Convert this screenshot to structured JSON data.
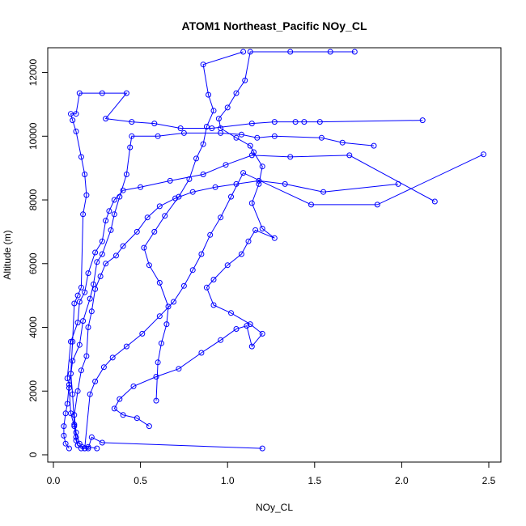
{
  "chart_data": {
    "type": "line",
    "title": "ATOM1 Northeast_Pacific NOy_CL",
    "xlabel": "NOy_CL",
    "ylabel": "Altitude (m)",
    "xlim": [
      0,
      2.5
    ],
    "ylim": [
      0,
      12700
    ],
    "xticks": [
      0.0,
      0.5,
      1.0,
      1.5,
      2.0,
      2.5
    ],
    "xtick_labels": [
      "0.0",
      "0.5",
      "1.0",
      "1.5",
      "2.0",
      "2.5"
    ],
    "yticks": [
      0,
      2000,
      4000,
      6000,
      8000,
      10000,
      12000
    ],
    "ytick_labels": [
      "0",
      "2000",
      "4000",
      "6000",
      "8000",
      "10000",
      "12000"
    ],
    "grid": false,
    "line_color": "#0000ff",
    "marker": "open-circle",
    "series": [
      {
        "values": [
          [
            1.2,
            200
          ],
          [
            0.28,
            380
          ],
          [
            0.22,
            550
          ],
          [
            0.2,
            200
          ],
          [
            0.16,
            200
          ],
          [
            0.14,
            300
          ],
          [
            0.13,
            450
          ],
          [
            0.12,
            950
          ],
          [
            0.11,
            1900
          ],
          [
            0.1,
            2550
          ],
          [
            0.11,
            3550
          ],
          [
            0.12,
            4750
          ],
          [
            0.14,
            5000
          ],
          [
            0.16,
            5250
          ],
          [
            0.17,
            7550
          ],
          [
            0.19,
            8150
          ],
          [
            0.18,
            8800
          ],
          [
            0.16,
            9350
          ],
          [
            0.13,
            10150
          ],
          [
            0.11,
            10500
          ],
          [
            0.1,
            10700
          ],
          [
            0.13,
            10700
          ],
          [
            0.15,
            11350
          ],
          [
            0.28,
            11350
          ],
          [
            0.42,
            11350
          ],
          [
            0.3,
            10550
          ],
          [
            0.45,
            10450
          ],
          [
            0.58,
            10400
          ],
          [
            0.73,
            10250
          ],
          [
            0.91,
            10250
          ],
          [
            1.14,
            10400
          ],
          [
            1.27,
            10450
          ],
          [
            1.39,
            10450
          ],
          [
            1.44,
            10450
          ],
          [
            1.53,
            10450
          ],
          [
            2.12,
            10500
          ]
        ]
      },
      {
        "values": [
          [
            0.18,
            200
          ],
          [
            0.14,
            300
          ],
          [
            0.13,
            550
          ],
          [
            0.12,
            900
          ],
          [
            0.1,
            1300
          ],
          [
            0.09,
            2100
          ],
          [
            0.11,
            2950
          ],
          [
            0.15,
            3450
          ],
          [
            0.17,
            4200
          ],
          [
            0.21,
            4900
          ],
          [
            0.23,
            5350
          ],
          [
            0.25,
            6050
          ],
          [
            0.28,
            6300
          ],
          [
            0.33,
            7050
          ],
          [
            0.35,
            7550
          ],
          [
            0.38,
            8100
          ],
          [
            0.42,
            8800
          ],
          [
            0.44,
            9650
          ],
          [
            0.45,
            10000
          ],
          [
            0.6,
            10000
          ],
          [
            0.75,
            10100
          ],
          [
            0.96,
            10100
          ],
          [
            1.08,
            10050
          ],
          [
            1.17,
            9950
          ],
          [
            1.27,
            10000
          ],
          [
            1.54,
            9950
          ],
          [
            1.66,
            9800
          ],
          [
            1.84,
            9700
          ]
        ]
      },
      {
        "values": [
          [
            0.25,
            200
          ],
          [
            0.2,
            250
          ],
          [
            0.15,
            350
          ],
          [
            0.13,
            700
          ],
          [
            0.12,
            1250
          ],
          [
            0.14,
            2000
          ],
          [
            0.16,
            2650
          ],
          [
            0.19,
            3100
          ],
          [
            0.2,
            4000
          ],
          [
            0.22,
            4500
          ],
          [
            0.24,
            5200
          ],
          [
            0.27,
            5600
          ],
          [
            0.3,
            6000
          ],
          [
            0.36,
            6250
          ],
          [
            0.4,
            6550
          ],
          [
            0.48,
            7000
          ],
          [
            0.54,
            7450
          ],
          [
            0.61,
            7800
          ],
          [
            0.7,
            8050
          ],
          [
            0.8,
            8250
          ],
          [
            0.93,
            8400
          ],
          [
            1.05,
            8500
          ],
          [
            1.18,
            8600
          ],
          [
            1.33,
            8500
          ],
          [
            1.55,
            8250
          ],
          [
            1.98,
            8500
          ]
        ]
      },
      {
        "values": [
          [
            0.55,
            900
          ],
          [
            0.48,
            1150
          ],
          [
            0.4,
            1250
          ],
          [
            0.35,
            1450
          ],
          [
            0.38,
            1750
          ],
          [
            0.46,
            2150
          ],
          [
            0.59,
            2450
          ],
          [
            0.72,
            2700
          ],
          [
            0.85,
            3200
          ],
          [
            0.96,
            3600
          ],
          [
            1.05,
            3950
          ],
          [
            1.11,
            4050
          ],
          [
            1.14,
            3400
          ],
          [
            1.2,
            3800
          ],
          [
            1.13,
            4100
          ],
          [
            1.02,
            4450
          ],
          [
            0.92,
            4700
          ],
          [
            0.88,
            5250
          ],
          [
            0.92,
            5500
          ],
          [
            1.0,
            5950
          ],
          [
            1.08,
            6300
          ],
          [
            1.12,
            6700
          ],
          [
            1.16,
            7050
          ],
          [
            1.27,
            6800
          ],
          [
            1.2,
            7100
          ],
          [
            1.14,
            7900
          ],
          [
            1.18,
            8500
          ],
          [
            1.2,
            9050
          ],
          [
            1.15,
            9500
          ],
          [
            1.13,
            9700
          ],
          [
            1.05,
            9950
          ],
          [
            0.96,
            10250
          ],
          [
            0.95,
            10550
          ],
          [
            1.0,
            10900
          ],
          [
            1.05,
            11350
          ],
          [
            1.1,
            11750
          ],
          [
            1.13,
            12650
          ],
          [
            1.36,
            12650
          ],
          [
            1.59,
            12650
          ],
          [
            1.73,
            12650
          ]
        ]
      },
      {
        "values": [
          [
            0.09,
            200
          ],
          [
            0.07,
            350
          ],
          [
            0.06,
            600
          ],
          [
            0.06,
            900
          ],
          [
            0.07,
            1300
          ],
          [
            0.08,
            1600
          ],
          [
            0.09,
            2200
          ],
          [
            0.08,
            2400
          ],
          [
            0.1,
            3550
          ],
          [
            0.14,
            4150
          ],
          [
            0.15,
            4800
          ],
          [
            0.18,
            5100
          ],
          [
            0.2,
            5700
          ],
          [
            0.24,
            6350
          ],
          [
            0.28,
            6700
          ],
          [
            0.3,
            7350
          ],
          [
            0.32,
            7650
          ],
          [
            0.35,
            8000
          ],
          [
            0.4,
            8300
          ],
          [
            0.5,
            8400
          ],
          [
            0.67,
            8600
          ],
          [
            0.86,
            8800
          ],
          [
            0.99,
            9100
          ],
          [
            1.14,
            9400
          ],
          [
            1.36,
            9350
          ],
          [
            1.7,
            9400
          ],
          [
            2.19,
            7950
          ]
        ]
      },
      {
        "values": [
          [
            0.59,
            1700
          ],
          [
            0.6,
            2900
          ],
          [
            0.62,
            3500
          ],
          [
            0.65,
            4100
          ],
          [
            0.66,
            4650
          ],
          [
            0.61,
            5400
          ],
          [
            0.55,
            5950
          ],
          [
            0.52,
            6500
          ],
          [
            0.58,
            7000
          ],
          [
            0.64,
            7500
          ],
          [
            0.72,
            8100
          ],
          [
            0.78,
            8650
          ],
          [
            0.82,
            9300
          ],
          [
            0.86,
            9750
          ],
          [
            0.88,
            10300
          ],
          [
            0.92,
            10800
          ],
          [
            0.89,
            11300
          ],
          [
            0.86,
            12250
          ],
          [
            1.09,
            12650
          ]
        ]
      },
      {
        "values": [
          [
            0.18,
            200
          ],
          [
            0.21,
            1900
          ],
          [
            0.24,
            2300
          ],
          [
            0.29,
            2750
          ],
          [
            0.34,
            3050
          ],
          [
            0.42,
            3400
          ],
          [
            0.51,
            3800
          ],
          [
            0.61,
            4350
          ],
          [
            0.69,
            4800
          ],
          [
            0.75,
            5300
          ],
          [
            0.8,
            5800
          ],
          [
            0.85,
            6300
          ],
          [
            0.9,
            6900
          ],
          [
            0.96,
            7450
          ],
          [
            1.02,
            8100
          ],
          [
            1.09,
            8850
          ],
          [
            1.48,
            7850
          ],
          [
            1.86,
            7850
          ],
          [
            2.47,
            9430
          ]
        ]
      }
    ]
  }
}
